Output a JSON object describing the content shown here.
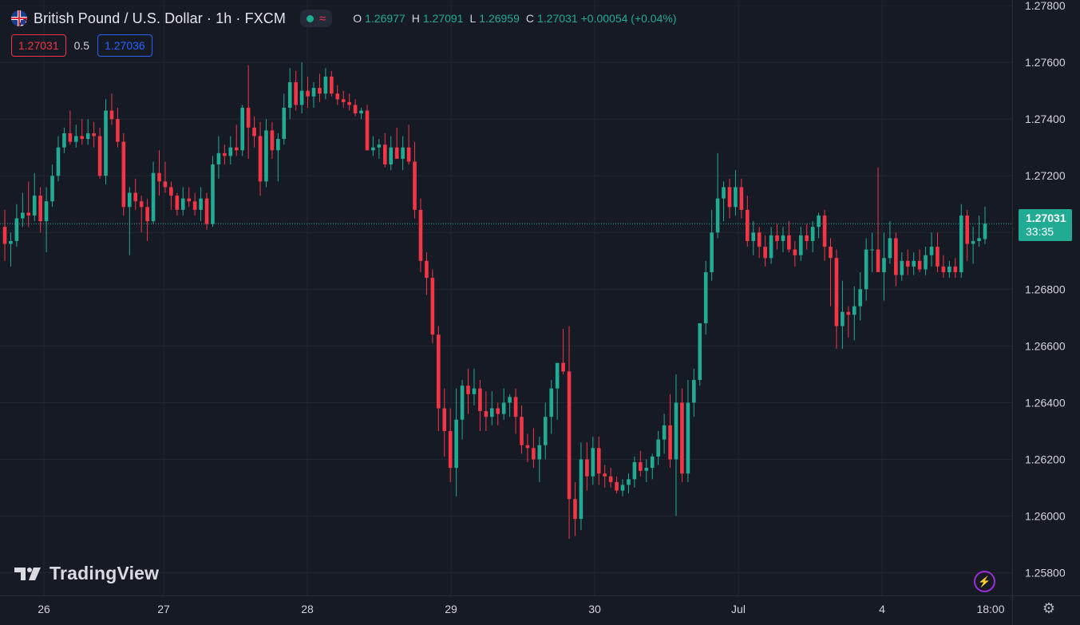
{
  "legend": {
    "symbol_title": "British Pound / U.S. Dollar · 1h · FXCM",
    "ohlc": [
      {
        "key": "O",
        "value": "1.26977"
      },
      {
        "key": "H",
        "value": "1.27091"
      },
      {
        "key": "L",
        "value": "1.26959"
      },
      {
        "key": "C",
        "value": "1.27031"
      }
    ],
    "change": "+0.00054 (+0.04%)",
    "status_icon": "green-dot",
    "wave_icon": "≈"
  },
  "quotes": {
    "sell": "1.27031",
    "spread": "0.5",
    "buy": "1.27036"
  },
  "last_price": {
    "value": "1.27031",
    "countdown": "33:35"
  },
  "branding": {
    "logo_text": "TradingView"
  },
  "icons": {
    "bolt": "⚡",
    "settings": "⚙"
  },
  "colors": {
    "background": "#161a25",
    "up": "#22ab94",
    "down": "#f23645",
    "grid": "#222631",
    "axis_text": "#d1d4dc",
    "buy": "#2962ff"
  },
  "chart_data": {
    "type": "candlestick",
    "title": "British Pound / U.S. Dollar · 1h · FXCM",
    "x_tick_labels": [
      "26",
      "27",
      "28",
      "29",
      "30",
      "Jul",
      "4",
      "18:00"
    ],
    "y_ticks": [
      "1.27800",
      "1.27600",
      "1.27400",
      "1.27200",
      "1.27000",
      "1.26800",
      "1.26600",
      "1.26400",
      "1.26200",
      "1.26000",
      "1.25800"
    ],
    "ylim": [
      1.2572,
      1.2782
    ],
    "grid": true,
    "last_price": 1.27031,
    "candles": [
      [
        1.2702,
        1.2708,
        1.269,
        1.2696
      ],
      [
        1.2696,
        1.27,
        1.2688,
        1.2697
      ],
      [
        1.2697,
        1.271,
        1.2695,
        1.2705
      ],
      [
        1.2705,
        1.2714,
        1.2702,
        1.2707
      ],
      [
        1.2707,
        1.2718,
        1.2702,
        1.2706
      ],
      [
        1.2706,
        1.2721,
        1.2704,
        1.2713
      ],
      [
        1.2713,
        1.2716,
        1.27,
        1.2704
      ],
      [
        1.2704,
        1.2716,
        1.2693,
        1.2711
      ],
      [
        1.2711,
        1.2724,
        1.2709,
        1.272
      ],
      [
        1.272,
        1.2734,
        1.2718,
        1.273
      ],
      [
        1.273,
        1.2737,
        1.2728,
        1.2735
      ],
      [
        1.2735,
        1.2743,
        1.2731,
        1.2732
      ],
      [
        1.2732,
        1.2738,
        1.273,
        1.2734
      ],
      [
        1.2734,
        1.274,
        1.2731,
        1.2733
      ],
      [
        1.2733,
        1.274,
        1.2731,
        1.2735
      ],
      [
        1.2735,
        1.2739,
        1.273,
        1.2734
      ],
      [
        1.2734,
        1.2737,
        1.2719,
        1.272
      ],
      [
        1.272,
        1.2747,
        1.2717,
        1.2743
      ],
      [
        1.2743,
        1.2749,
        1.2738,
        1.274
      ],
      [
        1.274,
        1.2744,
        1.273,
        1.2732
      ],
      [
        1.2732,
        1.2735,
        1.2706,
        1.2709
      ],
      [
        1.2709,
        1.2716,
        1.2692,
        1.2714
      ],
      [
        1.2714,
        1.2719,
        1.2708,
        1.2711
      ],
      [
        1.2711,
        1.2713,
        1.27,
        1.2709
      ],
      [
        1.2709,
        1.2712,
        1.2697,
        1.2704
      ],
      [
        1.2704,
        1.2725,
        1.2703,
        1.2721
      ],
      [
        1.2721,
        1.2729,
        1.2713,
        1.2718
      ],
      [
        1.2718,
        1.2725,
        1.2714,
        1.2716
      ],
      [
        1.2716,
        1.2718,
        1.2708,
        1.2713
      ],
      [
        1.2713,
        1.2714,
        1.2706,
        1.2708
      ],
      [
        1.2708,
        1.2716,
        1.2706,
        1.2712
      ],
      [
        1.2712,
        1.2716,
        1.2709,
        1.2711
      ],
      [
        1.2711,
        1.2714,
        1.2706,
        1.2708
      ],
      [
        1.2708,
        1.2716,
        1.2704,
        1.2712
      ],
      [
        1.2712,
        1.2714,
        1.2701,
        1.2703
      ],
      [
        1.2703,
        1.2727,
        1.2702,
        1.2724
      ],
      [
        1.2724,
        1.2734,
        1.2719,
        1.2728
      ],
      [
        1.2728,
        1.2731,
        1.2724,
        1.2727
      ],
      [
        1.2727,
        1.2734,
        1.2724,
        1.273
      ],
      [
        1.273,
        1.2738,
        1.2727,
        1.2729
      ],
      [
        1.2729,
        1.2745,
        1.2727,
        1.2744
      ],
      [
        1.2744,
        1.2759,
        1.2726,
        1.2737
      ],
      [
        1.2737,
        1.2741,
        1.273,
        1.2734
      ],
      [
        1.2734,
        1.2739,
        1.2713,
        1.2718
      ],
      [
        1.2718,
        1.274,
        1.2716,
        1.2736
      ],
      [
        1.2736,
        1.2739,
        1.2726,
        1.2729
      ],
      [
        1.2729,
        1.2735,
        1.2718,
        1.2733
      ],
      [
        1.2733,
        1.2749,
        1.2731,
        1.2744
      ],
      [
        1.2744,
        1.2758,
        1.274,
        1.2753
      ],
      [
        1.2753,
        1.2757,
        1.2743,
        1.2745
      ],
      [
        1.2745,
        1.276,
        1.2742,
        1.275
      ],
      [
        1.275,
        1.2755,
        1.2744,
        1.2748
      ],
      [
        1.2748,
        1.2753,
        1.2744,
        1.2751
      ],
      [
        1.2751,
        1.2756,
        1.2746,
        1.2749
      ],
      [
        1.2749,
        1.2758,
        1.2747,
        1.2755
      ],
      [
        1.2755,
        1.2757,
        1.2748,
        1.2749
      ],
      [
        1.2749,
        1.2752,
        1.2745,
        1.2747
      ],
      [
        1.2747,
        1.275,
        1.2744,
        1.2746
      ],
      [
        1.2746,
        1.2749,
        1.2743,
        1.2745
      ],
      [
        1.2745,
        1.2747,
        1.2741,
        1.2742
      ],
      [
        1.2742,
        1.2744,
        1.274,
        1.2743
      ],
      [
        1.2743,
        1.2745,
        1.2729,
        1.2729
      ],
      [
        1.2729,
        1.2734,
        1.2727,
        1.273
      ],
      [
        1.273,
        1.2733,
        1.2726,
        1.2731
      ],
      [
        1.2731,
        1.2735,
        1.2723,
        1.2724
      ],
      [
        1.2724,
        1.2734,
        1.2722,
        1.273
      ],
      [
        1.273,
        1.2737,
        1.2726,
        1.2726
      ],
      [
        1.2726,
        1.2734,
        1.2722,
        1.273
      ],
      [
        1.273,
        1.2738,
        1.2724,
        1.2725
      ],
      [
        1.2725,
        1.2732,
        1.2705,
        1.2708
      ],
      [
        1.2708,
        1.2712,
        1.2686,
        1.269
      ],
      [
        1.269,
        1.2693,
        1.2678,
        1.2684
      ],
      [
        1.2684,
        1.2687,
        1.2661,
        1.2664
      ],
      [
        1.2664,
        1.2667,
        1.263,
        1.2638
      ],
      [
        1.2638,
        1.2645,
        1.2621,
        1.263
      ],
      [
        1.263,
        1.2638,
        1.2612,
        1.2617
      ],
      [
        1.2617,
        1.2645,
        1.2607,
        1.2634
      ],
      [
        1.2634,
        1.2648,
        1.2627,
        1.2646
      ],
      [
        1.2646,
        1.2652,
        1.2636,
        1.2643
      ],
      [
        1.2643,
        1.2652,
        1.2639,
        1.2645
      ],
      [
        1.2645,
        1.2648,
        1.263,
        1.2637
      ],
      [
        1.2637,
        1.2644,
        1.263,
        1.2635
      ],
      [
        1.2635,
        1.2644,
        1.2632,
        1.2638
      ],
      [
        1.2638,
        1.264,
        1.2632,
        1.2636
      ],
      [
        1.2636,
        1.2645,
        1.2634,
        1.264
      ],
      [
        1.264,
        1.2643,
        1.2635,
        1.2642
      ],
      [
        1.2642,
        1.2645,
        1.2629,
        1.2635
      ],
      [
        1.2635,
        1.2639,
        1.2622,
        1.2625
      ],
      [
        1.2625,
        1.2629,
        1.2619,
        1.2624
      ],
      [
        1.2624,
        1.2631,
        1.2617,
        1.262
      ],
      [
        1.262,
        1.2628,
        1.2612,
        1.2625
      ],
      [
        1.2625,
        1.264,
        1.262,
        1.2635
      ],
      [
        1.2635,
        1.2648,
        1.2629,
        1.2645
      ],
      [
        1.2645,
        1.2654,
        1.2634,
        1.2654
      ],
      [
        1.2654,
        1.2666,
        1.265,
        1.2651
      ],
      [
        1.2651,
        1.2667,
        1.2592,
        1.2606
      ],
      [
        1.2606,
        1.2612,
        1.2593,
        1.2599
      ],
      [
        1.2599,
        1.2626,
        1.2595,
        1.262
      ],
      [
        1.262,
        1.2626,
        1.2609,
        1.2614
      ],
      [
        1.2614,
        1.2628,
        1.2611,
        1.2624
      ],
      [
        1.2624,
        1.2628,
        1.2611,
        1.2615
      ],
      [
        1.2615,
        1.2618,
        1.261,
        1.2614
      ],
      [
        1.2614,
        1.2617,
        1.261,
        1.2612
      ],
      [
        1.2612,
        1.2614,
        1.2608,
        1.2609
      ],
      [
        1.2609,
        1.2613,
        1.2607,
        1.2611
      ],
      [
        1.2611,
        1.2615,
        1.2608,
        1.2613
      ],
      [
        1.2613,
        1.2621,
        1.261,
        1.2619
      ],
      [
        1.2619,
        1.2623,
        1.2614,
        1.2616
      ],
      [
        1.2616,
        1.262,
        1.2612,
        1.2617
      ],
      [
        1.2617,
        1.2622,
        1.2613,
        1.2621
      ],
      [
        1.2621,
        1.263,
        1.2618,
        1.2627
      ],
      [
        1.2627,
        1.2636,
        1.2622,
        1.2632
      ],
      [
        1.2632,
        1.2643,
        1.2617,
        1.262
      ],
      [
        1.262,
        1.265,
        1.26,
        1.264
      ],
      [
        1.264,
        1.2645,
        1.2612,
        1.2615
      ],
      [
        1.2615,
        1.2648,
        1.2612,
        1.264
      ],
      [
        1.264,
        1.2652,
        1.2635,
        1.2648
      ],
      [
        1.2648,
        1.2668,
        1.2646,
        1.2668
      ],
      [
        1.2668,
        1.269,
        1.2664,
        1.2686
      ],
      [
        1.2686,
        1.2708,
        1.2683,
        1.27
      ],
      [
        1.27,
        1.2728,
        1.2698,
        1.2712
      ],
      [
        1.2712,
        1.2718,
        1.2704,
        1.2716
      ],
      [
        1.2716,
        1.2719,
        1.2705,
        1.2709
      ],
      [
        1.2709,
        1.2722,
        1.2706,
        1.2716
      ],
      [
        1.2716,
        1.2719,
        1.2705,
        1.2708
      ],
      [
        1.2708,
        1.2713,
        1.2695,
        1.2697
      ],
      [
        1.2697,
        1.2704,
        1.2692,
        1.27
      ],
      [
        1.27,
        1.2702,
        1.2691,
        1.2695
      ],
      [
        1.2695,
        1.2699,
        1.2688,
        1.2691
      ],
      [
        1.2691,
        1.2702,
        1.2689,
        1.2699
      ],
      [
        1.2699,
        1.2703,
        1.2694,
        1.2697
      ],
      [
        1.2697,
        1.2702,
        1.2693,
        1.2699
      ],
      [
        1.2699,
        1.2704,
        1.2693,
        1.2694
      ],
      [
        1.2694,
        1.2697,
        1.2688,
        1.2692
      ],
      [
        1.2692,
        1.2702,
        1.269,
        1.2699
      ],
      [
        1.2699,
        1.2703,
        1.2694,
        1.2697
      ],
      [
        1.2697,
        1.2704,
        1.2693,
        1.2702
      ],
      [
        1.2702,
        1.2707,
        1.2698,
        1.2706
      ],
      [
        1.2706,
        1.2708,
        1.269,
        1.2695
      ],
      [
        1.2695,
        1.2698,
        1.2674,
        1.2691
      ],
      [
        1.2691,
        1.2694,
        1.2659,
        1.2667
      ],
      [
        1.2667,
        1.2683,
        1.2659,
        1.2672
      ],
      [
        1.2672,
        1.2674,
        1.2663,
        1.2671
      ],
      [
        1.2671,
        1.2681,
        1.2662,
        1.2674
      ],
      [
        1.2674,
        1.2686,
        1.2669,
        1.268
      ],
      [
        1.268,
        1.2698,
        1.2676,
        1.2694
      ],
      [
        1.2694,
        1.27,
        1.2686,
        1.2694
      ],
      [
        1.2694,
        1.2723,
        1.2686,
        1.2686
      ],
      [
        1.2686,
        1.27,
        1.2676,
        1.2691
      ],
      [
        1.2691,
        1.2704,
        1.2689,
        1.2698
      ],
      [
        1.2698,
        1.27,
        1.2681,
        1.2685
      ],
      [
        1.2685,
        1.2693,
        1.2683,
        1.269
      ],
      [
        1.269,
        1.2694,
        1.2685,
        1.2688
      ],
      [
        1.2688,
        1.2693,
        1.2685,
        1.269
      ],
      [
        1.269,
        1.2694,
        1.2686,
        1.2687
      ],
      [
        1.2687,
        1.2695,
        1.2685,
        1.2692
      ],
      [
        1.2692,
        1.27,
        1.2688,
        1.2695
      ],
      [
        1.2695,
        1.27,
        1.2686,
        1.2688
      ],
      [
        1.2688,
        1.2692,
        1.2684,
        1.2686
      ],
      [
        1.2686,
        1.269,
        1.2684,
        1.2688
      ],
      [
        1.2688,
        1.2691,
        1.2684,
        1.2686
      ],
      [
        1.2686,
        1.271,
        1.2684,
        1.2706
      ],
      [
        1.2706,
        1.2708,
        1.269,
        1.2696
      ],
      [
        1.2696,
        1.2702,
        1.2689,
        1.2697
      ],
      [
        1.2697,
        1.2706,
        1.2695,
        1.2698
      ],
      [
        1.26977,
        1.27091,
        1.26959,
        1.27031
      ]
    ]
  }
}
